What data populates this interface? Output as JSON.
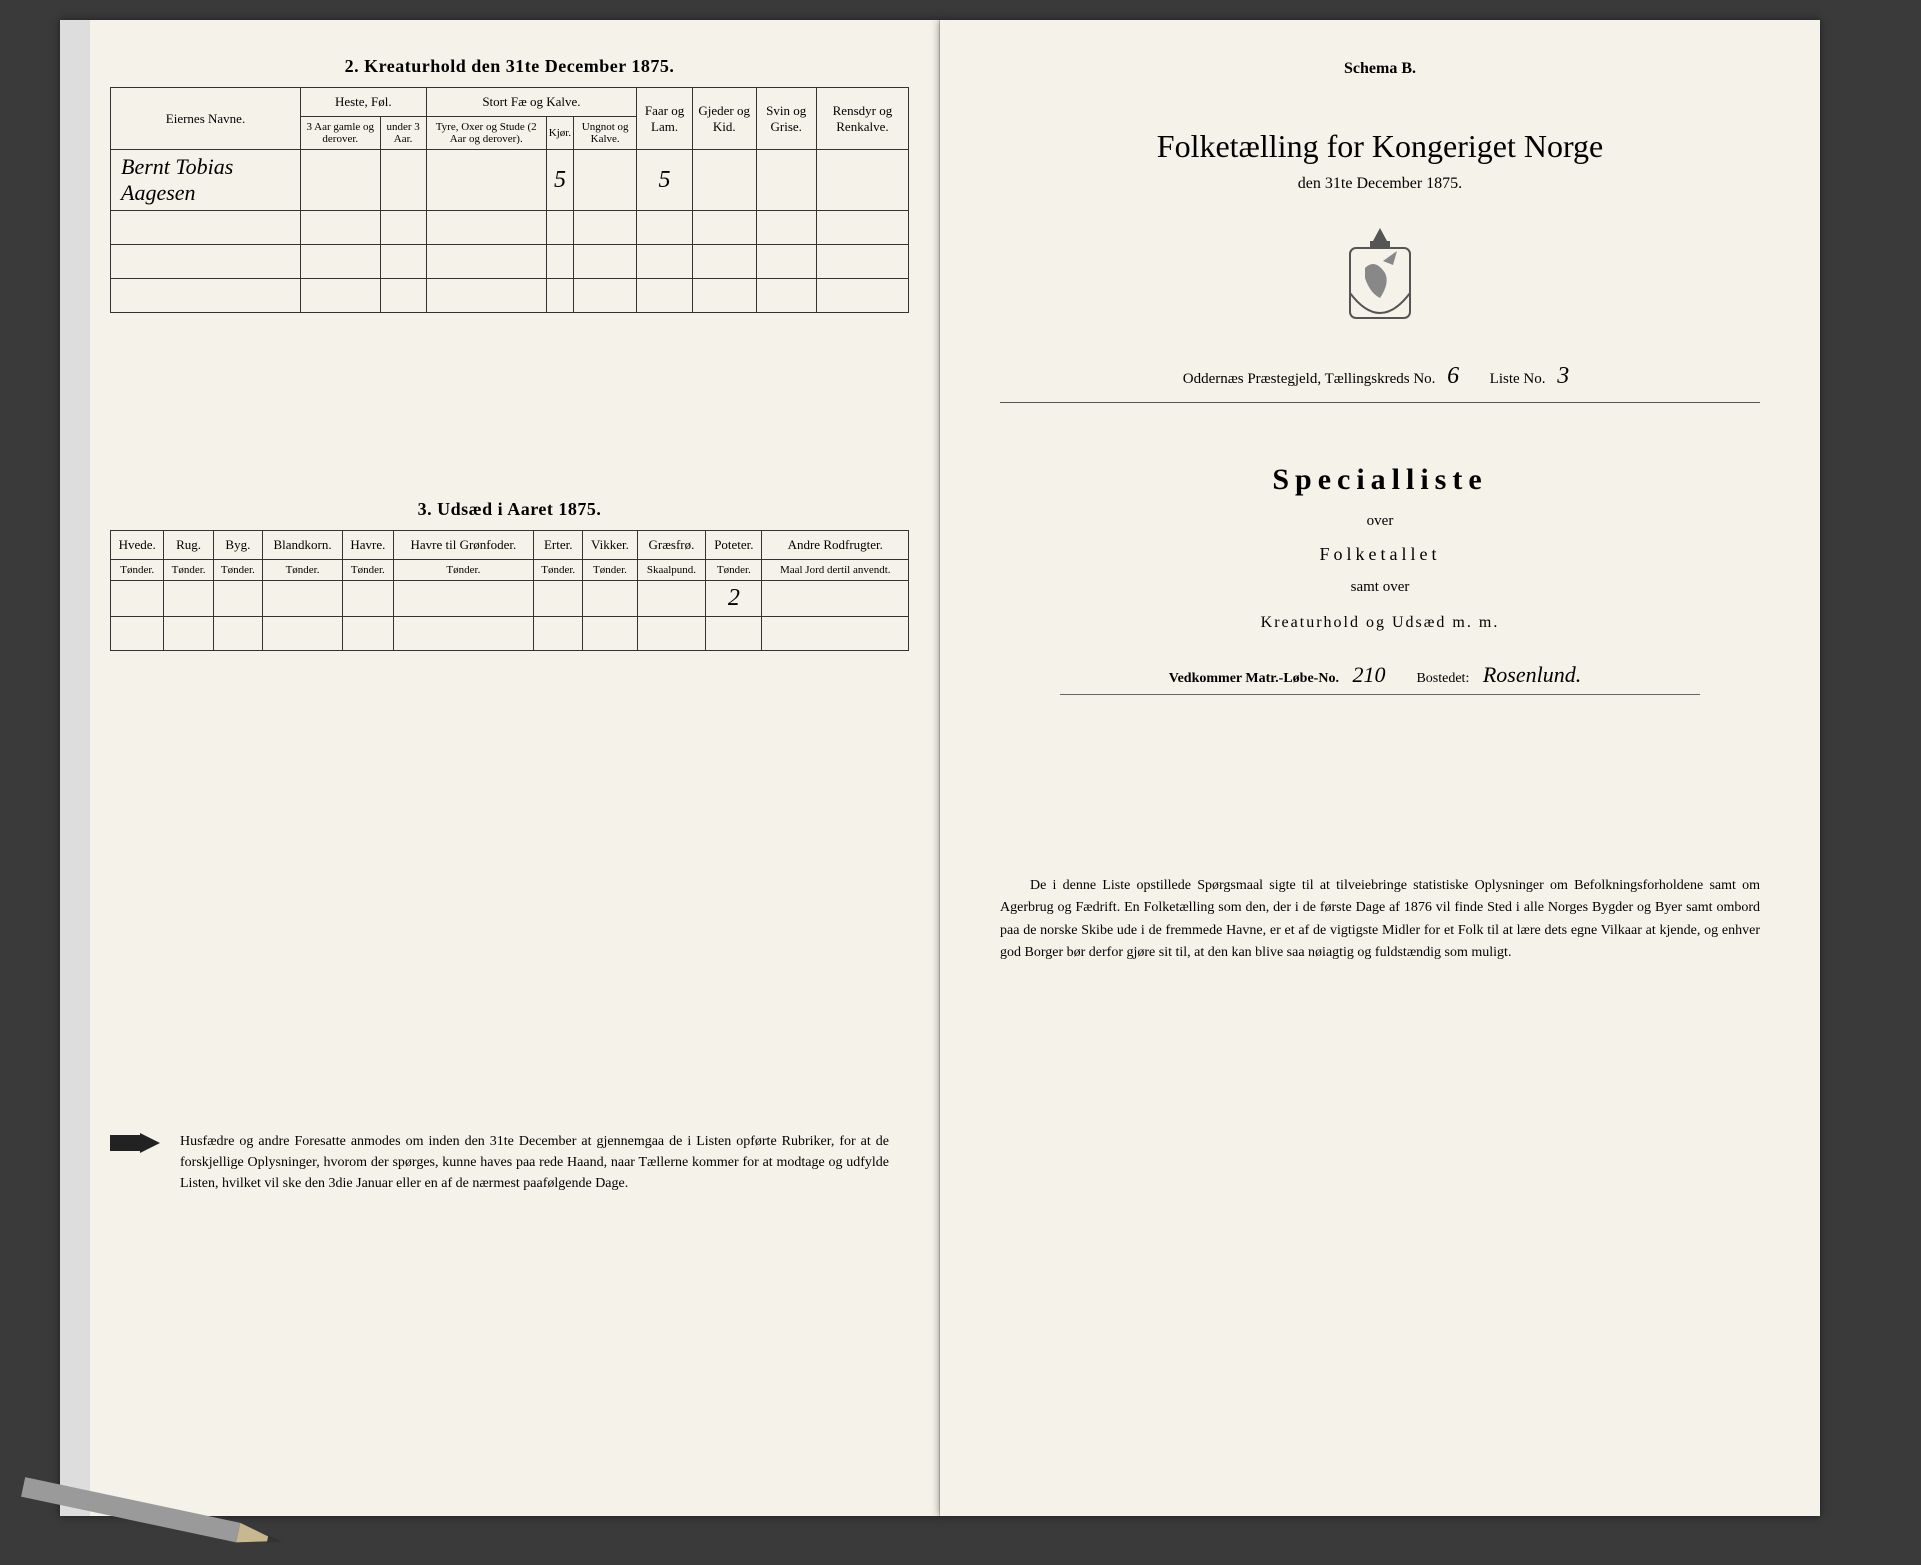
{
  "left": {
    "title_top": "2. Kreaturhold den 31te December 1875.",
    "table1": {
      "col_eier": "Eiernes Navne.",
      "grp_heste": "Heste, Føl.",
      "grp_stort": "Stort Fæ og Kalve.",
      "col_heste3": "3 Aar gamle og derover.",
      "col_hesteU3": "under 3 Aar.",
      "col_tyre": "Tyre, Oxer og Stude (2 Aar og derover).",
      "col_kjor": "Kjør.",
      "col_ungnot": "Ungnot og Kalve.",
      "col_faar": "Faar og Lam.",
      "col_gjeder": "Gjeder og Kid.",
      "col_svin": "Svin og Grise.",
      "col_rens": "Rensdyr og Renkalve.",
      "row1_name": "Bernt Tobias Aagesen",
      "row1_kjor": "5",
      "row1_faar": "5"
    },
    "title_mid": "3. Udsæd i Aaret 1875.",
    "table2": {
      "cols": [
        "Hvede.",
        "Rug.",
        "Byg.",
        "Blandkorn.",
        "Havre.",
        "Havre til Grønfoder.",
        "Erter.",
        "Vikker.",
        "Græsfrø.",
        "Poteter.",
        "Andre Rodfrugter."
      ],
      "units": [
        "Tønder.",
        "Tønder.",
        "Tønder.",
        "Tønder.",
        "Tønder.",
        "Tønder.",
        "Tønder.",
        "Tønder.",
        "Skaalpund.",
        "Tønder.",
        "Maal Jord dertil anvendt."
      ],
      "poteter_val": "2"
    },
    "instructions": "Husfædre og andre Foresatte anmodes om inden den 31te December at gjennemgaa de i Listen opførte Rubriker, for at de forskjellige Oplysninger, hvorom der spørges, kunne haves paa rede Haand, naar Tællerne kommer for at modtage og udfylde Listen, hvilket vil ske den 3die Januar eller en af de nærmest paafølgende Dage."
  },
  "right": {
    "schema": "Schema B.",
    "title": "Folketælling for Kongeriget Norge",
    "date": "den 31te December 1875.",
    "district_label": "Oddernæs Præstegjeld, Tællingskreds No.",
    "kreds_no": "6",
    "liste_label": "Liste No.",
    "liste_no": "3",
    "specialliste": "Specialliste",
    "over": "over",
    "folketallet": "Folketallet",
    "samt": "samt over",
    "kreatur": "Kreaturhold og Udsæd m. m.",
    "matr_label": "Vedkommer Matr.-Løbe-No.",
    "matr_no": "210",
    "bostedet_label": "Bostedet:",
    "bostedet": "Rosenlund.",
    "bottom": "De i denne Liste opstillede Spørgsmaal sigte til at tilveiebringe statistiske Oplysninger om Befolkningsforholdene samt om Agerbrug og Fædrift. En Folketælling som den, der i de første Dage af 1876 vil finde Sted i alle Norges Bygder og Byer samt ombord paa de norske Skibe ude i de fremmede Havne, er et af de vigtigste Midler for et Folk til at lære dets egne Vilkaar at kjende, og enhver god Borger bør derfor gjøre sit til, at den kan blive saa nøiagtig og fuldstændig som muligt."
  },
  "colors": {
    "paper": "#f5f2ea",
    "ink": "#222222",
    "line": "#333333"
  }
}
